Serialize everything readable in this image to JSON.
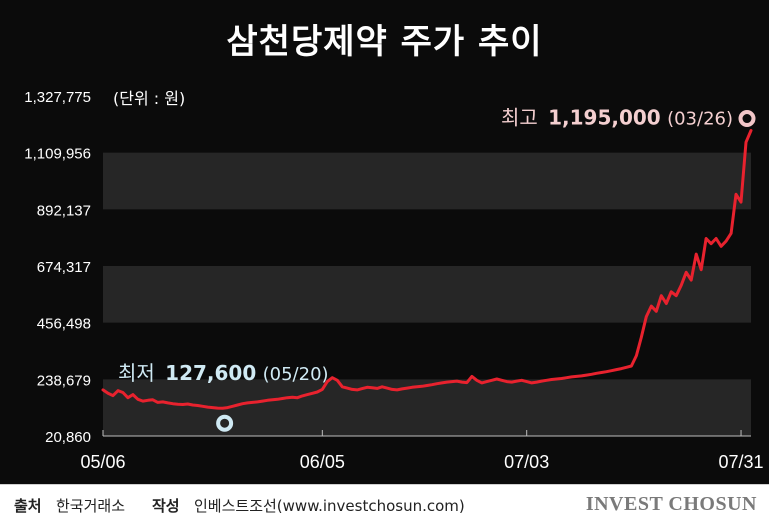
{
  "title": "삼천당제약 주가 추이",
  "unit_label": "(단위 : 원)",
  "footer": {
    "source_label": "출처",
    "source_value": "한국거래소",
    "author_label": "작성",
    "author_value": "인베스트조선(www.investchosun.com)",
    "brand": "INVEST CHOSUN"
  },
  "colors": {
    "background": "#0b0b0b",
    "band": "#262626",
    "line": "#e8222e",
    "text": "#ffffff",
    "max_annotation": "#f4cfd0",
    "max_marker": "#f2c6c8",
    "min_marker": "#cfe9f3"
  },
  "chart_data": {
    "type": "line",
    "title": "삼천당제약 주가 추이",
    "ylabel": "(단위 : 원)",
    "ylim": [
      20860,
      1327775
    ],
    "yticks": [
      1327775,
      1109956,
      892137,
      674317,
      456498,
      238679,
      20860
    ],
    "ytick_labels": [
      "1,327,775",
      "1,109,956",
      "892,137",
      "674,317",
      "456,498",
      "238,679",
      "20,860"
    ],
    "x_tick_labels": [
      "05/06",
      "06/05",
      "07/03",
      "07/31"
    ],
    "x_tick_index": [
      0,
      44,
      85,
      128
    ],
    "series": [
      {
        "values": [
          198000,
          185000,
          176000,
          195000,
          188000,
          168000,
          180000,
          162000,
          155000,
          158000,
          160000,
          150000,
          152000,
          148000,
          145000,
          143000,
          142000,
          144000,
          140000,
          138000,
          135000,
          132000,
          130000,
          128000,
          127600,
          130000,
          135000,
          140000,
          145000,
          148000,
          150000,
          152000,
          155000,
          158000,
          160000,
          162000,
          165000,
          168000,
          170000,
          168000,
          175000,
          180000,
          185000,
          190000,
          200000,
          230000,
          245000,
          235000,
          210000,
          205000,
          200000,
          198000,
          203000,
          208000,
          206000,
          204000,
          210000,
          205000,
          200000,
          198000,
          202000,
          205000,
          208000,
          210000,
          212000,
          215000,
          218000,
          222000,
          225000,
          228000,
          230000,
          232000,
          228000,
          226000,
          250000,
          235000,
          225000,
          230000,
          235000,
          240000,
          235000,
          230000,
          228000,
          232000,
          235000,
          230000,
          225000,
          228000,
          232000,
          235000,
          238000,
          240000,
          242000,
          245000,
          248000,
          250000,
          252000,
          255000,
          258000,
          262000,
          265000,
          268000,
          272000,
          276000,
          280000,
          285000,
          290000,
          330000,
          400000,
          480000,
          520000,
          500000,
          560000,
          530000,
          575000,
          560000,
          600000,
          650000,
          620000,
          720000,
          660000,
          780000,
          760000,
          780000,
          750000,
          770000,
          800000,
          950000,
          920000,
          1150000,
          1195000
        ],
        "x_labels_visible": [
          "05/06",
          "06/05",
          "07/03",
          "07/31"
        ]
      }
    ],
    "annotations": {
      "max": {
        "prefix": "최고",
        "value": "1,195,000",
        "date": "(03/26)",
        "point_value": 1195000,
        "point_index": 130
      },
      "min": {
        "prefix": "최저",
        "value": "127,600",
        "date": "(05/20)",
        "point_value": 127600,
        "point_index": 24
      }
    },
    "grid": "alternating horizontal bands",
    "legend": "none"
  }
}
